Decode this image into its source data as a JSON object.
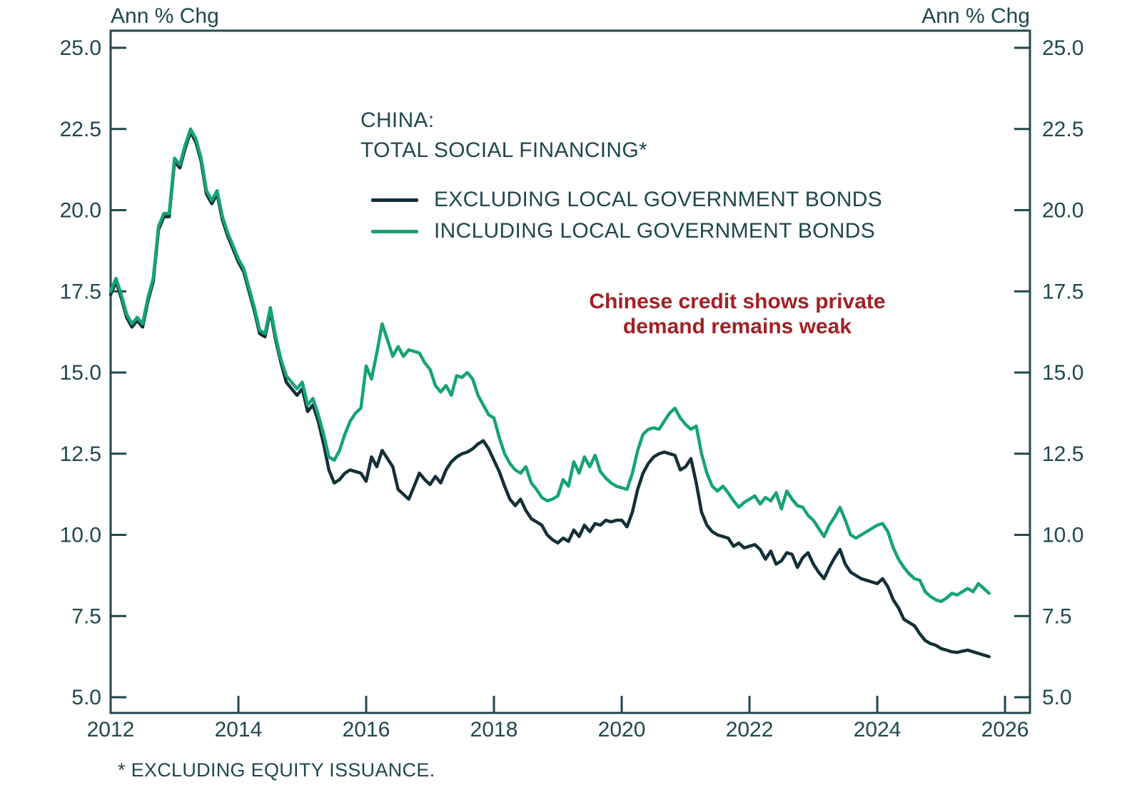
{
  "header": {
    "axis_title_left": "Ann % Chg",
    "axis_title_right": "Ann % Chg"
  },
  "legend": {
    "title_line1": "CHINA:",
    "title_line2": "TOTAL SOCIAL FINANCING*",
    "items": [
      {
        "label": "EXCLUDING LOCAL GOVERNMENT BONDS",
        "color": "#142f38"
      },
      {
        "label": "INCLUDING LOCAL GOVERNMENT BONDS",
        "color": "#16a377"
      }
    ]
  },
  "annotation": {
    "line1": "Chinese credit shows private",
    "line2": "demand remains weak",
    "color": "#a32025"
  },
  "footnote": "* EXCLUDING EQUITY ISSUANCE.",
  "colors": {
    "axis": "#1f484d",
    "series_excluding": "#142f38",
    "series_including": "#16a377",
    "annotation_red": "#a32025"
  },
  "chart_data": {
    "type": "line",
    "title": "CHINA: TOTAL SOCIAL FINANCING* (* EXCLUDING EQUITY ISSUANCE)",
    "xlabel": "",
    "ylabel": "Ann % Chg",
    "ylim": [
      5.0,
      25.0
    ],
    "xlim": [
      2012.0,
      2026.39
    ],
    "y_ticks": [
      5.0,
      7.5,
      10.0,
      12.5,
      15.0,
      17.5,
      20.0,
      22.5,
      25.0
    ],
    "x_ticks": [
      2012,
      2014,
      2016,
      2018,
      2020,
      2022,
      2024,
      2026
    ],
    "grid": false,
    "legend_position": "inside-top-left",
    "frequency": "monthly",
    "x_start_year": 2012,
    "x_start_month": 1,
    "series": [
      {
        "name": "EXCLUDING LOCAL GOVERNMENT BONDS",
        "color": "#142f38",
        "values": [
          17.4,
          17.8,
          17.3,
          16.7,
          16.4,
          16.6,
          16.4,
          17.2,
          17.8,
          19.4,
          19.8,
          19.8,
          21.5,
          21.3,
          21.9,
          22.4,
          22.1,
          21.5,
          20.5,
          20.2,
          20.5,
          19.7,
          19.2,
          18.8,
          18.4,
          18.1,
          17.5,
          16.9,
          16.2,
          16.1,
          16.9,
          16.0,
          15.3,
          14.7,
          14.5,
          14.3,
          14.5,
          13.8,
          14.0,
          13.5,
          12.8,
          12.0,
          11.6,
          11.7,
          11.9,
          12.0,
          11.95,
          11.9,
          11.65,
          12.4,
          12.1,
          12.6,
          12.35,
          12.1,
          11.4,
          11.25,
          11.1,
          11.5,
          11.9,
          11.7,
          11.55,
          11.8,
          11.6,
          12.0,
          12.25,
          12.4,
          12.5,
          12.55,
          12.65,
          12.8,
          12.9,
          12.65,
          12.3,
          11.95,
          11.5,
          11.1,
          10.9,
          11.1,
          10.75,
          10.5,
          10.4,
          10.3,
          10.0,
          9.85,
          9.75,
          9.9,
          9.8,
          10.15,
          9.95,
          10.3,
          10.1,
          10.35,
          10.3,
          10.45,
          10.4,
          10.45,
          10.45,
          10.25,
          10.7,
          11.4,
          11.9,
          12.2,
          12.4,
          12.5,
          12.55,
          12.5,
          12.45,
          12.0,
          12.1,
          12.35,
          11.6,
          10.7,
          10.3,
          10.1,
          10.0,
          9.95,
          9.9,
          9.65,
          9.75,
          9.6,
          9.65,
          9.7,
          9.55,
          9.25,
          9.5,
          9.1,
          9.2,
          9.45,
          9.4,
          9.0,
          9.3,
          9.45,
          9.1,
          8.85,
          8.65,
          9.0,
          9.3,
          9.55,
          9.1,
          8.85,
          8.75,
          8.65,
          8.6,
          8.55,
          8.5,
          8.65,
          8.4,
          8.0,
          7.75,
          7.4,
          7.3,
          7.2,
          6.95,
          6.75,
          6.65,
          6.6,
          6.5,
          6.45,
          6.4,
          6.38,
          6.42,
          6.45,
          6.4,
          6.35,
          6.3,
          6.25
        ]
      },
      {
        "name": "INCLUDING LOCAL GOVERNMENT BONDS",
        "color": "#16a377",
        "values": [
          17.5,
          17.9,
          17.4,
          16.8,
          16.5,
          16.7,
          16.5,
          17.3,
          17.9,
          19.5,
          19.9,
          19.9,
          21.6,
          21.4,
          22.0,
          22.5,
          22.2,
          21.6,
          20.6,
          20.3,
          20.6,
          19.8,
          19.3,
          18.9,
          18.5,
          18.2,
          17.6,
          17.0,
          16.3,
          16.2,
          17.0,
          16.1,
          15.4,
          14.9,
          14.7,
          14.5,
          14.7,
          14.0,
          14.2,
          13.7,
          13.1,
          12.4,
          12.3,
          12.6,
          13.1,
          13.5,
          13.75,
          13.9,
          15.2,
          14.8,
          15.6,
          16.5,
          16.0,
          15.5,
          15.8,
          15.5,
          15.7,
          15.65,
          15.6,
          15.3,
          15.1,
          14.6,
          14.4,
          14.6,
          14.3,
          14.9,
          14.85,
          15.0,
          14.8,
          14.3,
          14.0,
          13.7,
          13.6,
          13.0,
          12.5,
          12.2,
          12.0,
          11.9,
          12.1,
          11.6,
          11.4,
          11.15,
          11.05,
          11.1,
          11.2,
          11.7,
          11.5,
          12.25,
          11.9,
          12.4,
          12.1,
          12.45,
          11.95,
          11.75,
          11.6,
          11.5,
          11.45,
          11.4,
          11.9,
          12.6,
          13.1,
          13.25,
          13.3,
          13.25,
          13.5,
          13.75,
          13.9,
          13.6,
          13.4,
          13.25,
          13.35,
          12.5,
          11.9,
          11.5,
          11.35,
          11.5,
          11.3,
          11.05,
          10.85,
          11.0,
          11.1,
          11.2,
          10.95,
          11.15,
          11.05,
          11.3,
          10.8,
          11.35,
          11.1,
          10.9,
          10.85,
          10.6,
          10.45,
          10.2,
          9.95,
          10.3,
          10.55,
          10.85,
          10.45,
          10.0,
          9.9,
          10.0,
          10.1,
          10.2,
          10.3,
          10.35,
          10.1,
          9.6,
          9.25,
          9.0,
          8.8,
          8.65,
          8.6,
          8.25,
          8.1,
          8.0,
          7.95,
          8.05,
          8.2,
          8.15,
          8.25,
          8.35,
          8.25,
          8.5,
          8.35,
          8.2
        ]
      }
    ]
  }
}
